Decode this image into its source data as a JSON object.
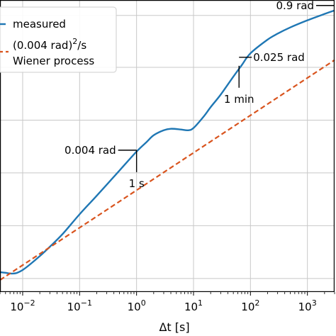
{
  "chart_data": {
    "type": "line",
    "title": "",
    "xlabel": "Δt [s]",
    "ylabel": "",
    "x_scale": "log",
    "y_scale": "log",
    "xlim": [
      0.004,
      3000
    ],
    "ylim": [
      0.0007,
      1.5
    ],
    "grid": true,
    "legend_position": "top-left",
    "x_ticks": [
      {
        "value": 0.01,
        "base": "10",
        "exp": "−2"
      },
      {
        "value": 0.1,
        "base": "10",
        "exp": "−1"
      },
      {
        "value": 1,
        "base": "10",
        "exp": "0"
      },
      {
        "value": 10,
        "base": "10",
        "exp": "1"
      },
      {
        "value": 100,
        "base": "10",
        "exp": "2"
      },
      {
        "value": 1000,
        "base": "10",
        "exp": "3"
      }
    ],
    "y_gridlines": [
      0.001,
      0.004,
      0.016,
      0.064,
      0.256,
      1.0
    ],
    "legend": {
      "measured": "measured",
      "model_base": "(0.004 rad)",
      "model_exp": "2",
      "model_tail": "/s",
      "model_line2": "Wiener process"
    },
    "series": [
      {
        "name": "measured",
        "color": "#1f77b4",
        "dash": false,
        "x": [
          0.004,
          0.005,
          0.006,
          0.007,
          0.008,
          0.01,
          0.013,
          0.02,
          0.03,
          0.05,
          0.1,
          0.2,
          0.5,
          1,
          1.5,
          2,
          3,
          4,
          6,
          8,
          10,
          15,
          20,
          30,
          50,
          70,
          100,
          200,
          300,
          500,
          1000,
          2000,
          3000
        ],
        "y": [
          0.00118,
          0.00116,
          0.00114,
          0.00114,
          0.00116,
          0.00125,
          0.00142,
          0.0018,
          0.0023,
          0.0032,
          0.0054,
          0.0088,
          0.017,
          0.028,
          0.036,
          0.043,
          0.049,
          0.051,
          0.05,
          0.049,
          0.052,
          0.07,
          0.09,
          0.125,
          0.2,
          0.27,
          0.37,
          0.53,
          0.62,
          0.73,
          0.88,
          1.04,
          1.14
        ]
      },
      {
        "name": "(0.004 rad)²/s Wiener process",
        "color": "#d9541e",
        "dash": true,
        "x": [
          0.004,
          3000
        ],
        "y": [
          0.00096,
          0.31
        ]
      }
    ],
    "annotations": [
      {
        "id": "ann-0004",
        "label": "0.004 rad",
        "x": 1,
        "y": 0.0255,
        "text_side": "left",
        "tick_label": "1 s"
      },
      {
        "id": "ann-0025",
        "label": "0.025 rad",
        "x": 63,
        "y": 0.234,
        "text_side": "right",
        "tick_label": "1 min"
      },
      {
        "id": "ann-09",
        "label": "0.9 rad",
        "x": 3000,
        "y": 1.14,
        "text_side": "left",
        "tick_label": ""
      }
    ]
  }
}
